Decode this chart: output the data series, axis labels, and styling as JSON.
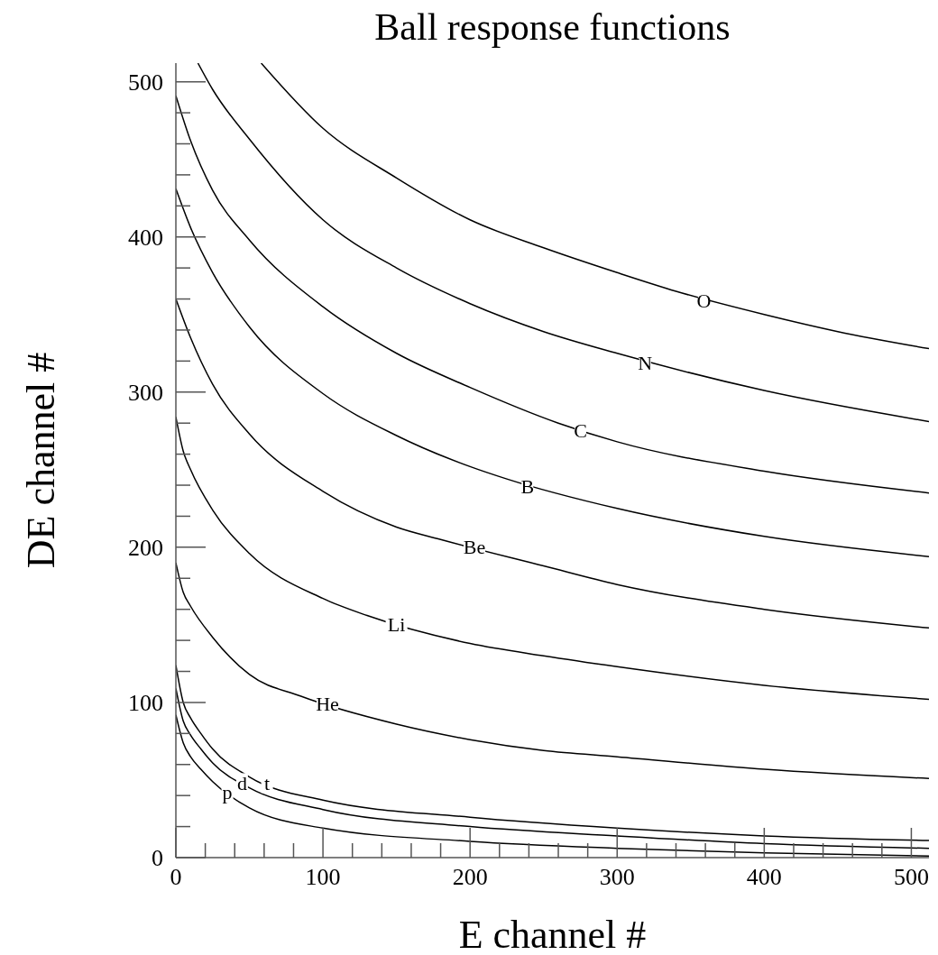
{
  "chart_data": {
    "type": "line",
    "title": "Ball response functions",
    "xlabel": "E channel #",
    "ylabel": "DE channel #",
    "xlim": [
      0,
      512
    ],
    "ylim": [
      0,
      512
    ],
    "xticks": [
      0,
      {
        "value": 20,
        "label": null
      },
      {
        "value": 40,
        "label": null
      },
      {
        "value": 60,
        "label": null
      },
      {
        "value": 80,
        "label": null
      },
      100,
      {
        "value": 120,
        "label": null
      },
      {
        "value": 140,
        "label": null
      },
      {
        "value": 160,
        "label": null
      },
      {
        "value": 180,
        "label": null
      },
      200,
      {
        "value": 220,
        "label": null
      },
      {
        "value": 240,
        "label": null
      },
      {
        "value": 260,
        "label": null
      },
      {
        "value": 280,
        "label": null
      },
      300,
      {
        "value": 320,
        "label": null
      },
      {
        "value": 340,
        "label": null
      },
      {
        "value": 360,
        "label": null
      },
      {
        "value": 380,
        "label": null
      },
      400,
      {
        "value": 420,
        "label": null
      },
      {
        "value": 440,
        "label": null
      },
      {
        "value": 460,
        "label": null
      },
      {
        "value": 480,
        "label": null
      },
      500
    ],
    "yticks": [
      0,
      {
        "value": 20,
        "label": null
      },
      {
        "value": 40,
        "label": null
      },
      {
        "value": 60,
        "label": null
      },
      {
        "value": 80,
        "label": null
      },
      100,
      {
        "value": 120,
        "label": null
      },
      {
        "value": 140,
        "label": null
      },
      {
        "value": 160,
        "label": null
      },
      {
        "value": 180,
        "label": null
      },
      200,
      {
        "value": 220,
        "label": null
      },
      {
        "value": 240,
        "label": null
      },
      {
        "value": 260,
        "label": null
      },
      {
        "value": 280,
        "label": null
      },
      300,
      {
        "value": 320,
        "label": null
      },
      {
        "value": 340,
        "label": null
      },
      {
        "value": 360,
        "label": null
      },
      {
        "value": 380,
        "label": null
      },
      400,
      {
        "value": 420,
        "label": null
      },
      {
        "value": 440,
        "label": null
      },
      {
        "value": 460,
        "label": null
      },
      {
        "value": 480,
        "label": null
      },
      500
    ],
    "series": [
      {
        "color": "#000000",
        "x": [
          0,
          5,
          10,
          17,
          25,
          50,
          100,
          200,
          300,
          400,
          512
        ],
        "values": [
          92,
          74,
          65,
          57,
          49,
          32,
          19,
          10.5,
          6,
          3,
          1
        ]
      },
      {
        "color": "#000000",
        "x": [
          0,
          5,
          10,
          17,
          25,
          50,
          100,
          200,
          300,
          400,
          512
        ],
        "values": [
          109,
          88,
          79,
          70,
          61,
          45,
          31,
          20,
          14,
          9,
          6
        ]
      },
      {
        "color": "#000000",
        "x": [
          0,
          5,
          10,
          17,
          25,
          50,
          100,
          200,
          300,
          400,
          512
        ],
        "values": [
          124,
          100,
          90,
          80,
          70,
          52,
          37,
          26,
          19,
          14,
          11
        ]
      },
      {
        "color": "#000000",
        "x": [
          0,
          5,
          10,
          25,
          50,
          85,
          150,
          200,
          250,
          300,
          400,
          512
        ],
        "values": [
          190,
          171,
          162,
          142,
          118,
          104,
          86,
          76,
          69,
          65,
          57,
          51
        ]
      },
      {
        "color": "#000000",
        "x": [
          0,
          5,
          10,
          25,
          50,
          100,
          130,
          200,
          250,
          300,
          400,
          512
        ],
        "values": [
          284,
          262,
          250,
          224,
          196,
          167,
          156,
          138,
          130,
          123,
          111,
          102
        ]
      },
      {
        "color": "#000000",
        "x": [
          0,
          10,
          25,
          50,
          100,
          150,
          180,
          250,
          300,
          400,
          512
        ],
        "values": [
          360,
          335,
          305,
          273,
          236,
          213,
          205,
          188,
          176,
          160,
          148
        ]
      },
      {
        "color": "#000000",
        "x": [
          0,
          10,
          25,
          50,
          100,
          150,
          200,
          225,
          300,
          400,
          512
        ],
        "values": [
          431,
          406,
          377,
          342,
          299,
          272,
          252,
          244,
          225,
          207,
          194
        ]
      },
      {
        "color": "#000000",
        "x": [
          0,
          10,
          25,
          50,
          100,
          150,
          200,
          260,
          300,
          400,
          512
        ],
        "values": [
          491,
          462,
          430,
          398,
          355,
          325,
          303,
          280,
          268,
          249,
          235
        ]
      },
      {
        "color": "#000000",
        "x": [
          15,
          25,
          50,
          100,
          150,
          200,
          250,
          300,
          400,
          512
        ],
        "values": [
          512,
          495,
          463,
          411,
          380,
          357,
          339,
          325,
          301,
          281
        ]
      },
      {
        "color": "#000000",
        "x": [
          58,
          100,
          150,
          200,
          250,
          300,
          340,
          400,
          450,
          512
        ],
        "values": [
          512,
          470,
          438,
          411,
          393,
          377,
          365,
          350,
          339,
          328
        ]
      }
    ],
    "annotations": [
      {
        "text": "p",
        "x": 35,
        "y": 42
      },
      {
        "text": "d",
        "x": 45,
        "y": 48
      },
      {
        "text": "t",
        "x": 62,
        "y": 48
      },
      {
        "text": "He",
        "x": 103,
        "y": 99
      },
      {
        "text": "Li",
        "x": 150,
        "y": 150
      },
      {
        "text": "Be",
        "x": 203,
        "y": 200
      },
      {
        "text": "B",
        "x": 239,
        "y": 239
      },
      {
        "text": "C",
        "x": 275,
        "y": 275
      },
      {
        "text": "N",
        "x": 319,
        "y": 319
      },
      {
        "text": "O",
        "x": 359,
        "y": 359
      }
    ]
  }
}
